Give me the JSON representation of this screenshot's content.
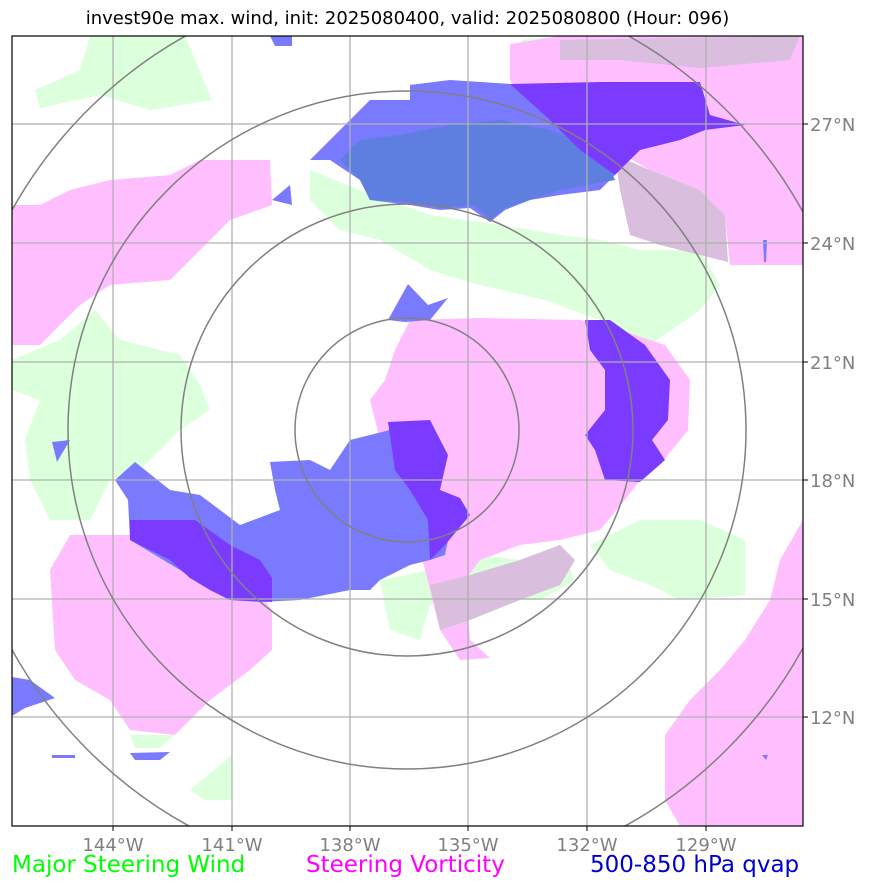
{
  "title": "invest90e max. wind, init: 2025080400, valid: 2025080800 (Hour: 096)",
  "axes": {
    "lon_labels": [
      "144°W",
      "141°W",
      "138°W",
      "135°W",
      "132°W",
      "129°W"
    ],
    "lat_labels": [
      "27°N",
      "24°N",
      "21°N",
      "18°N",
      "15°N",
      "12°N"
    ]
  },
  "legend": {
    "wind": {
      "label": "Major Steering Wind",
      "color": "#00ff00"
    },
    "vorticity": {
      "label": "Steering Vorticity",
      "color": "#ff00ff"
    },
    "qvap": {
      "label": "500-850 hPa qvap",
      "color": "#0000cc"
    }
  },
  "colors": {
    "wind_fill": "#dcffdc",
    "vorticity_fill": "#ffbfff",
    "qvap_fill": "#6b6bff",
    "qvap_strong": "#7b3bff",
    "grid": "#b0b0b0",
    "range_rings": "#808080",
    "tick_label": "#808080"
  }
}
